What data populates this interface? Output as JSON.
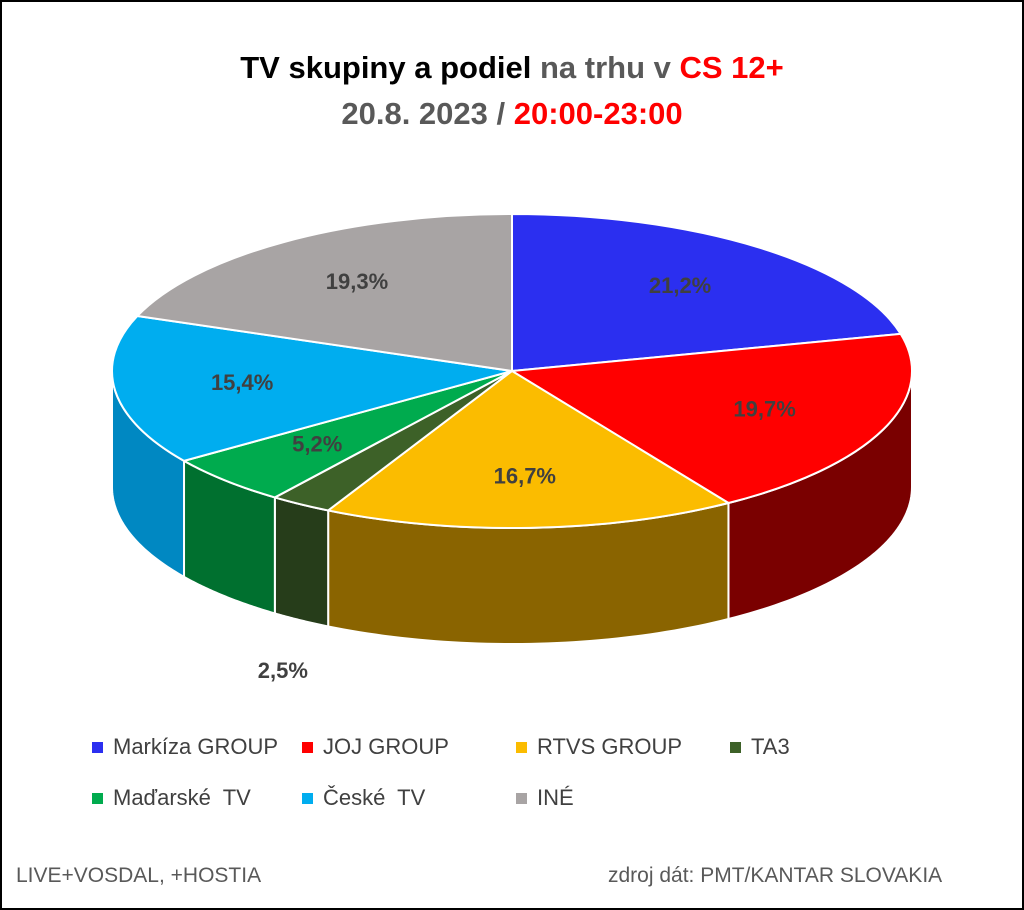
{
  "title": {
    "line1": [
      {
        "text": "TV skupiny a podiel ",
        "color": "#000000"
      },
      {
        "text": "na trhu v ",
        "color": "#595959"
      },
      {
        "text": "CS 12+",
        "color": "#ff0000"
      }
    ],
    "line2": [
      {
        "text": "20.8. 2023 / ",
        "color": "#595959"
      },
      {
        "text": "20:00-23:00",
        "color": "#ff0000"
      }
    ]
  },
  "chart_data": {
    "type": "pie",
    "style": "3d",
    "series": [
      {
        "name": "Markíza GROUP",
        "value": 21.2,
        "label": "21,2%",
        "color": "#2b2ff0",
        "side_color": "#1a1d8c"
      },
      {
        "name": "JOJ GROUP",
        "value": 19.7,
        "label": "19,7%",
        "color": "#ff0000",
        "side_color": "#7a0000"
      },
      {
        "name": "RTVS GROUP",
        "value": 16.7,
        "label": "16,7%",
        "color": "#fbbc00",
        "side_color": "#8a6400"
      },
      {
        "name": "TA3",
        "value": 2.5,
        "label": "2,5%",
        "color": "#3d6128",
        "side_color": "#263d1a"
      },
      {
        "name": "Maďarské  TV",
        "value": 5.2,
        "label": "5,2%",
        "color": "#00ab4e",
        "side_color": "#00702f"
      },
      {
        "name": "České  TV",
        "value": 15.4,
        "label": "15,4%",
        "color": "#00adef",
        "side_color": "#0088c2"
      },
      {
        "name": "INÉ",
        "value": 19.3,
        "label": "19,3%",
        "color": "#a8a4a4",
        "side_color": "#6e6a6a"
      }
    ],
    "legend_position": "bottom"
  },
  "footer": {
    "left": "LIVE+VOSDAL, +HOSTIA",
    "right": "zdroj dát: PMT/KANTAR SLOVAKIA"
  }
}
